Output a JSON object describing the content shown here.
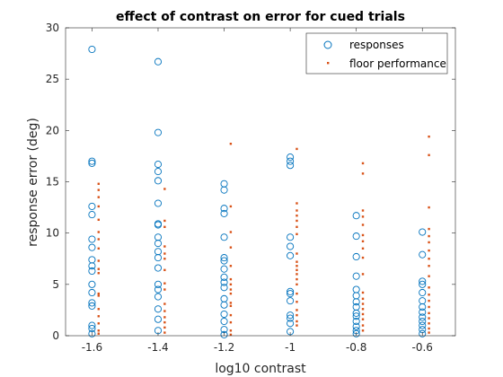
{
  "chart_data": {
    "type": "scatter",
    "title": "effect of contrast on error for cued trials",
    "xlabel": "log10 contrast",
    "ylabel": "response error (deg)",
    "xlim": [
      -1.68,
      -0.5
    ],
    "ylim": [
      0,
      30
    ],
    "xticks": [
      -1.6,
      -1.4,
      -1.2,
      -1,
      -0.8,
      -0.6
    ],
    "xtick_labels": [
      "-1.6",
      "-1.4",
      "-1.2",
      "-1",
      "-0.8",
      "-0.6"
    ],
    "yticks": [
      0,
      5,
      10,
      15,
      20,
      25,
      30
    ],
    "ytick_labels": [
      "0",
      "5",
      "10",
      "15",
      "20",
      "25",
      "30"
    ],
    "grid": false,
    "legend_position": "top-right",
    "series": [
      {
        "name": "responses",
        "marker": "open-circle",
        "color": "#0072BD",
        "points": [
          {
            "x": -1.6,
            "y": 27.9
          },
          {
            "x": -1.6,
            "y": 17.0
          },
          {
            "x": -1.6,
            "y": 16.8
          },
          {
            "x": -1.6,
            "y": 12.6
          },
          {
            "x": -1.6,
            "y": 11.8
          },
          {
            "x": -1.6,
            "y": 9.4
          },
          {
            "x": -1.6,
            "y": 8.6
          },
          {
            "x": -1.6,
            "y": 7.4
          },
          {
            "x": -1.6,
            "y": 6.8
          },
          {
            "x": -1.6,
            "y": 6.3
          },
          {
            "x": -1.6,
            "y": 5.0
          },
          {
            "x": -1.6,
            "y": 4.2
          },
          {
            "x": -1.6,
            "y": 3.2
          },
          {
            "x": -1.6,
            "y": 2.9
          },
          {
            "x": -1.6,
            "y": 1.0
          },
          {
            "x": -1.6,
            "y": 0.7
          },
          {
            "x": -1.6,
            "y": 0.2
          },
          {
            "x": -1.4,
            "y": 26.7
          },
          {
            "x": -1.4,
            "y": 19.8
          },
          {
            "x": -1.4,
            "y": 16.7
          },
          {
            "x": -1.4,
            "y": 16.0
          },
          {
            "x": -1.4,
            "y": 15.1
          },
          {
            "x": -1.4,
            "y": 12.9
          },
          {
            "x": -1.4,
            "y": 10.9
          },
          {
            "x": -1.4,
            "y": 10.8
          },
          {
            "x": -1.4,
            "y": 9.6
          },
          {
            "x": -1.4,
            "y": 9.0
          },
          {
            "x": -1.4,
            "y": 8.2
          },
          {
            "x": -1.4,
            "y": 7.6
          },
          {
            "x": -1.4,
            "y": 6.6
          },
          {
            "x": -1.4,
            "y": 5.0
          },
          {
            "x": -1.4,
            "y": 4.5
          },
          {
            "x": -1.4,
            "y": 3.8
          },
          {
            "x": -1.4,
            "y": 2.6
          },
          {
            "x": -1.4,
            "y": 1.6
          },
          {
            "x": -1.4,
            "y": 0.5
          },
          {
            "x": -1.2,
            "y": 14.8
          },
          {
            "x": -1.2,
            "y": 14.2
          },
          {
            "x": -1.2,
            "y": 12.4
          },
          {
            "x": -1.2,
            "y": 11.9
          },
          {
            "x": -1.2,
            "y": 9.6
          },
          {
            "x": -1.2,
            "y": 7.6
          },
          {
            "x": -1.2,
            "y": 7.3
          },
          {
            "x": -1.2,
            "y": 6.5
          },
          {
            "x": -1.2,
            "y": 5.7
          },
          {
            "x": -1.2,
            "y": 5.2
          },
          {
            "x": -1.2,
            "y": 4.7
          },
          {
            "x": -1.2,
            "y": 3.6
          },
          {
            "x": -1.2,
            "y": 3.0
          },
          {
            "x": -1.2,
            "y": 2.1
          },
          {
            "x": -1.2,
            "y": 1.4
          },
          {
            "x": -1.2,
            "y": 0.6
          },
          {
            "x": -1.2,
            "y": 0.1
          },
          {
            "x": -1.0,
            "y": 17.4
          },
          {
            "x": -1.0,
            "y": 17.0
          },
          {
            "x": -1.0,
            "y": 16.6
          },
          {
            "x": -1.0,
            "y": 9.6
          },
          {
            "x": -1.0,
            "y": 8.7
          },
          {
            "x": -1.0,
            "y": 7.8
          },
          {
            "x": -1.0,
            "y": 4.3
          },
          {
            "x": -1.0,
            "y": 4.1
          },
          {
            "x": -1.0,
            "y": 3.4
          },
          {
            "x": -1.0,
            "y": 2.0
          },
          {
            "x": -1.0,
            "y": 1.7
          },
          {
            "x": -1.0,
            "y": 1.2
          },
          {
            "x": -1.0,
            "y": 0.4
          },
          {
            "x": -0.8,
            "y": 11.7
          },
          {
            "x": -0.8,
            "y": 9.7
          },
          {
            "x": -0.8,
            "y": 7.7
          },
          {
            "x": -0.8,
            "y": 5.8
          },
          {
            "x": -0.8,
            "y": 4.5
          },
          {
            "x": -0.8,
            "y": 3.9
          },
          {
            "x": -0.8,
            "y": 3.3
          },
          {
            "x": -0.8,
            "y": 2.8
          },
          {
            "x": -0.8,
            "y": 2.2
          },
          {
            "x": -0.8,
            "y": 1.9
          },
          {
            "x": -0.8,
            "y": 1.4
          },
          {
            "x": -0.8,
            "y": 0.9
          },
          {
            "x": -0.8,
            "y": 0.5
          },
          {
            "x": -0.8,
            "y": 0.2
          },
          {
            "x": -0.6,
            "y": 10.1
          },
          {
            "x": -0.6,
            "y": 7.9
          },
          {
            "x": -0.6,
            "y": 5.3
          },
          {
            "x": -0.6,
            "y": 5.0
          },
          {
            "x": -0.6,
            "y": 4.2
          },
          {
            "x": -0.6,
            "y": 3.4
          },
          {
            "x": -0.6,
            "y": 2.8
          },
          {
            "x": -0.6,
            "y": 2.3
          },
          {
            "x": -0.6,
            "y": 1.8
          },
          {
            "x": -0.6,
            "y": 1.4
          },
          {
            "x": -0.6,
            "y": 1.0
          },
          {
            "x": -0.6,
            "y": 0.6
          },
          {
            "x": -0.6,
            "y": 0.2
          }
        ]
      },
      {
        "name": "floor performance",
        "marker": "dot",
        "color": "#D95319",
        "points": [
          {
            "x": -1.58,
            "y": 14.8
          },
          {
            "x": -1.58,
            "y": 14.2
          },
          {
            "x": -1.58,
            "y": 13.5
          },
          {
            "x": -1.58,
            "y": 12.6
          },
          {
            "x": -1.58,
            "y": 11.3
          },
          {
            "x": -1.58,
            "y": 10.1
          },
          {
            "x": -1.58,
            "y": 9.4
          },
          {
            "x": -1.58,
            "y": 8.5
          },
          {
            "x": -1.58,
            "y": 7.3
          },
          {
            "x": -1.58,
            "y": 6.5
          },
          {
            "x": -1.58,
            "y": 6.1
          },
          {
            "x": -1.58,
            "y": 4.1
          },
          {
            "x": -1.58,
            "y": 3.9
          },
          {
            "x": -1.58,
            "y": 2.6
          },
          {
            "x": -1.58,
            "y": 1.9
          },
          {
            "x": -1.58,
            "y": 1.2
          },
          {
            "x": -1.58,
            "y": 0.5
          },
          {
            "x": -1.58,
            "y": 0.2
          },
          {
            "x": -1.38,
            "y": 14.3
          },
          {
            "x": -1.38,
            "y": 11.2
          },
          {
            "x": -1.38,
            "y": 10.6
          },
          {
            "x": -1.38,
            "y": 8.7
          },
          {
            "x": -1.38,
            "y": 8.0
          },
          {
            "x": -1.38,
            "y": 7.5
          },
          {
            "x": -1.38,
            "y": 6.4
          },
          {
            "x": -1.38,
            "y": 5.1
          },
          {
            "x": -1.38,
            "y": 4.5
          },
          {
            "x": -1.38,
            "y": 3.1
          },
          {
            "x": -1.38,
            "y": 2.4
          },
          {
            "x": -1.38,
            "y": 1.8
          },
          {
            "x": -1.38,
            "y": 1.3
          },
          {
            "x": -1.38,
            "y": 0.8
          },
          {
            "x": -1.38,
            "y": 0.3
          },
          {
            "x": -1.18,
            "y": 18.7
          },
          {
            "x": -1.18,
            "y": 12.6
          },
          {
            "x": -1.18,
            "y": 10.1
          },
          {
            "x": -1.18,
            "y": 8.6
          },
          {
            "x": -1.18,
            "y": 6.8
          },
          {
            "x": -1.18,
            "y": 5.5
          },
          {
            "x": -1.18,
            "y": 5.0
          },
          {
            "x": -1.18,
            "y": 4.5
          },
          {
            "x": -1.18,
            "y": 4.1
          },
          {
            "x": -1.18,
            "y": 3.2
          },
          {
            "x": -1.18,
            "y": 2.9
          },
          {
            "x": -1.18,
            "y": 2.0
          },
          {
            "x": -1.18,
            "y": 1.3
          },
          {
            "x": -1.18,
            "y": 0.5
          },
          {
            "x": -1.18,
            "y": 0.1
          },
          {
            "x": -0.98,
            "y": 18.2
          },
          {
            "x": -0.98,
            "y": 12.9
          },
          {
            "x": -0.98,
            "y": 12.2
          },
          {
            "x": -0.98,
            "y": 11.7
          },
          {
            "x": -0.98,
            "y": 11.2
          },
          {
            "x": -0.98,
            "y": 10.6
          },
          {
            "x": -0.98,
            "y": 9.9
          },
          {
            "x": -0.98,
            "y": 8.0
          },
          {
            "x": -0.98,
            "y": 7.2
          },
          {
            "x": -0.98,
            "y": 6.8
          },
          {
            "x": -0.98,
            "y": 6.4
          },
          {
            "x": -0.98,
            "y": 6.0
          },
          {
            "x": -0.98,
            "y": 5.5
          },
          {
            "x": -0.98,
            "y": 5.0
          },
          {
            "x": -0.98,
            "y": 4.1
          },
          {
            "x": -0.98,
            "y": 3.3
          },
          {
            "x": -0.98,
            "y": 2.5
          },
          {
            "x": -0.98,
            "y": 2.0
          },
          {
            "x": -0.98,
            "y": 1.4
          },
          {
            "x": -0.98,
            "y": 1.0
          },
          {
            "x": -0.78,
            "y": 16.8
          },
          {
            "x": -0.78,
            "y": 15.8
          },
          {
            "x": -0.78,
            "y": 12.2
          },
          {
            "x": -0.78,
            "y": 11.6
          },
          {
            "x": -0.78,
            "y": 10.8
          },
          {
            "x": -0.78,
            "y": 9.8
          },
          {
            "x": -0.78,
            "y": 9.2
          },
          {
            "x": -0.78,
            "y": 8.5
          },
          {
            "x": -0.78,
            "y": 7.6
          },
          {
            "x": -0.78,
            "y": 6.0
          },
          {
            "x": -0.78,
            "y": 4.2
          },
          {
            "x": -0.78,
            "y": 3.6
          },
          {
            "x": -0.78,
            "y": 3.1
          },
          {
            "x": -0.78,
            "y": 2.6
          },
          {
            "x": -0.78,
            "y": 2.1
          },
          {
            "x": -0.78,
            "y": 1.6
          },
          {
            "x": -0.78,
            "y": 1.0
          },
          {
            "x": -0.78,
            "y": 0.5
          },
          {
            "x": -0.58,
            "y": 19.4
          },
          {
            "x": -0.58,
            "y": 17.6
          },
          {
            "x": -0.58,
            "y": 12.5
          },
          {
            "x": -0.58,
            "y": 10.4
          },
          {
            "x": -0.58,
            "y": 9.7
          },
          {
            "x": -0.58,
            "y": 9.1
          },
          {
            "x": -0.58,
            "y": 8.3
          },
          {
            "x": -0.58,
            "y": 7.5
          },
          {
            "x": -0.58,
            "y": 6.8
          },
          {
            "x": -0.58,
            "y": 5.8
          },
          {
            "x": -0.58,
            "y": 4.7
          },
          {
            "x": -0.58,
            "y": 4.0
          },
          {
            "x": -0.58,
            "y": 3.4
          },
          {
            "x": -0.58,
            "y": 2.8
          },
          {
            "x": -0.58,
            "y": 2.2
          },
          {
            "x": -0.58,
            "y": 1.7
          },
          {
            "x": -0.58,
            "y": 1.2
          },
          {
            "x": -0.58,
            "y": 0.7
          },
          {
            "x": -0.58,
            "y": 0.3
          }
        ]
      }
    ]
  }
}
